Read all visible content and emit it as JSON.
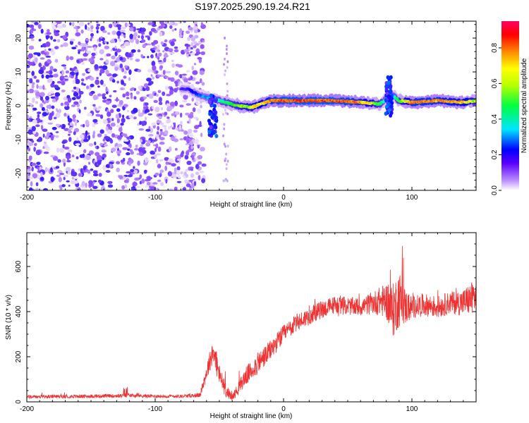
{
  "title": "S197.2025.290.19.24.R21",
  "chart_data": [
    {
      "type": "heatmap",
      "name": "spectrogram",
      "title": "S197.2025.290.19.24.R21",
      "xlabel": "Height of straight line (km)",
      "ylabel": "Frequency (Hz)",
      "xlim": [
        -200,
        150
      ],
      "ylim": [
        -25,
        25
      ],
      "xticks": [
        -200,
        -100,
        0,
        100
      ],
      "xtick_labels": [
        "-200",
        "-100",
        "0",
        "100"
      ],
      "yticks": [
        -20,
        -10,
        0,
        10,
        20
      ],
      "ytick_labels": [
        "-20",
        "-10",
        "0",
        "10",
        "20"
      ],
      "colorbar": {
        "label": "Normalized spectral amplitude",
        "range": [
          0,
          0.95
        ],
        "ticks": [
          0.0,
          0.2,
          0.4,
          0.6,
          0.8
        ],
        "tick_labels": [
          "0.0",
          "0.2",
          "0.4",
          "0.6",
          "0.8"
        ],
        "colors": [
          "#ffffff",
          "#9955ff",
          "#0000ff",
          "#00ffff",
          "#00ff00",
          "#ffff00",
          "#ff8800",
          "#ff0000",
          "#ff0066"
        ]
      },
      "ridge": {
        "description_x": [
          -75,
          -65,
          -55,
          -45,
          -35,
          -25,
          -10,
          0,
          20,
          40,
          60,
          75,
          80,
          85,
          90,
          100,
          120,
          140,
          150
        ],
        "frequency_hz": [
          5,
          3,
          2,
          1,
          0,
          -0.5,
          1.5,
          1.5,
          1.5,
          1.5,
          1,
          0.5,
          2,
          3,
          1.5,
          1,
          1.5,
          1,
          1.5
        ],
        "peak_amplitude": [
          0.2,
          0.3,
          0.35,
          0.45,
          0.55,
          0.6,
          0.75,
          0.8,
          0.8,
          0.8,
          0.75,
          0.5,
          0.35,
          0.35,
          0.5,
          0.75,
          0.75,
          0.7,
          0.55
        ]
      },
      "noise_region": {
        "x_from": -200,
        "x_to": -70,
        "max_amplitude": 0.2
      }
    },
    {
      "type": "line",
      "name": "snr",
      "xlabel": "Height of straight line (km)",
      "ylabel": "SNR (10 * v/v)",
      "xlim": [
        -200,
        150
      ],
      "ylim": [
        0,
        750
      ],
      "xticks": [
        -200,
        -100,
        0,
        100
      ],
      "xtick_labels": [
        "-200",
        "-100",
        "0",
        "100"
      ],
      "yticks": [
        0,
        200,
        400,
        600
      ],
      "ytick_labels": [
        "0",
        "200",
        "400",
        "600"
      ],
      "color": "#ee3333",
      "trend_x": [
        -200,
        -150,
        -120,
        -100,
        -80,
        -65,
        -55,
        -50,
        -45,
        -40,
        -35,
        -30,
        -20,
        -10,
        0,
        10,
        20,
        30,
        40,
        50,
        60,
        70,
        80,
        85,
        90,
        95,
        100,
        110,
        120,
        130,
        140,
        150
      ],
      "trend_y": [
        22,
        25,
        28,
        25,
        25,
        30,
        230,
        120,
        50,
        20,
        60,
        110,
        170,
        230,
        300,
        350,
        380,
        410,
        430,
        425,
        420,
        440,
        450,
        400,
        460,
        420,
        420,
        430,
        420,
        440,
        440,
        470
      ],
      "noise_amplitude": [
        8,
        8,
        8,
        8,
        8,
        10,
        60,
        50,
        30,
        15,
        30,
        40,
        50,
        45,
        40,
        40,
        40,
        40,
        40,
        40,
        40,
        50,
        80,
        120,
        130,
        80,
        50,
        50,
        50,
        50,
        60,
        80
      ]
    }
  ]
}
